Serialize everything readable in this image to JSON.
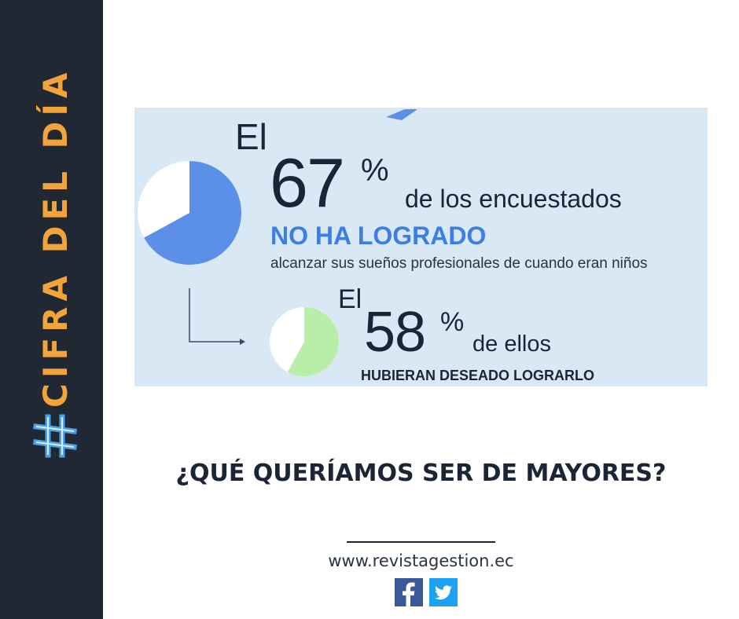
{
  "sidebar": {
    "hash_symbol": "#",
    "title": "CIFRA DEL DÍA",
    "bg_color": "#1f2833",
    "accent_color": "#f2a33a",
    "hash_color": "#4aa3e8"
  },
  "infographic": {
    "first": {
      "prefix": "El",
      "number": "67",
      "percent_sign": "%",
      "description": "de los encuestados",
      "emphasis": "NO HA LOGRADO",
      "detail": "alcanzar sus sueños profesionales de cuando eran niños",
      "pie_fraction": 0.67,
      "pie_color": "#5b8fe8"
    },
    "second": {
      "prefix": "El",
      "number": "58",
      "percent_sign": "%",
      "description": "de ellos",
      "emphasis": "HUBIERAN DESEADO LOGRARLO",
      "pie_fraction": 0.58,
      "pie_color": "#b8eeaa"
    },
    "panel_color": "#d8e8f4",
    "arrow_icon": "corner-down-right-arrow-icon"
  },
  "headline": "¿QUÉ QUERÍAMOS SER DE MAYORES?",
  "footer": {
    "website": "www.revistagestion.ec",
    "social": [
      {
        "name": "facebook-icon",
        "color": "#3b5998"
      },
      {
        "name": "twitter-icon",
        "color": "#1da1f2"
      }
    ]
  }
}
